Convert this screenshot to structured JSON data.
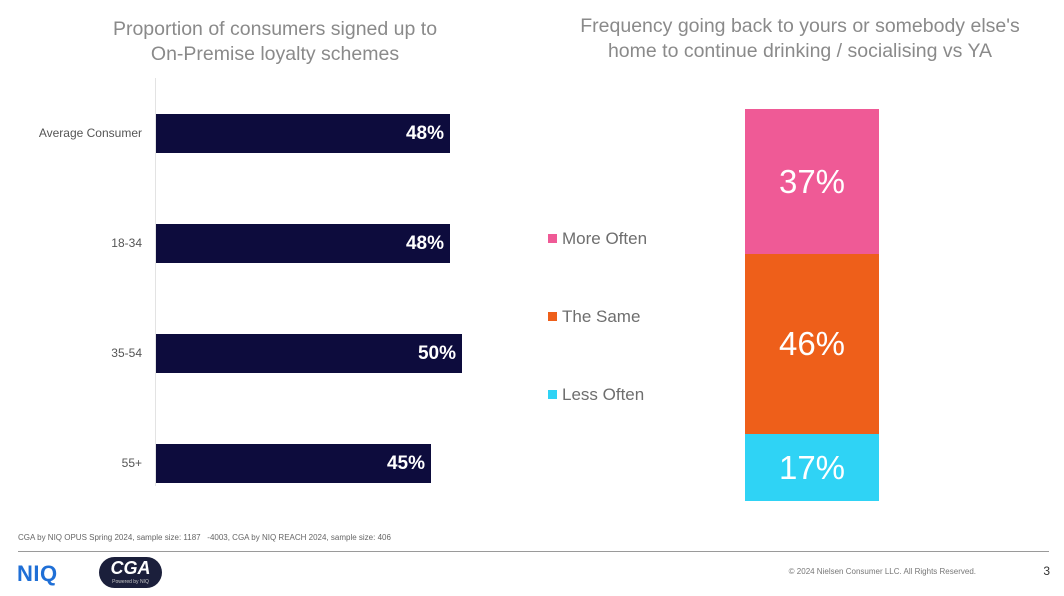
{
  "chart_data": [
    {
      "type": "bar",
      "orientation": "horizontal",
      "title": "Proportion of consumers signed up to On-Premise loyalty schemes",
      "categories": [
        "Average Consumer",
        "18-34",
        "35-54",
        "55+"
      ],
      "values": [
        48,
        48,
        50,
        45
      ],
      "value_labels": [
        "48%",
        "48%",
        "50%",
        "45%"
      ],
      "xlim": [
        0,
        100
      ],
      "bar_color": "#0d0c3d",
      "grid": false
    },
    {
      "type": "bar",
      "stacked": true,
      "title": "Frequency going back to yours or somebody else's home to continue drinking / socialising vs YA",
      "series": [
        {
          "name": "More Often",
          "value": 37,
          "label": "37%",
          "color": "#ef5a96"
        },
        {
          "name": "The Same",
          "value": 46,
          "label": "46%",
          "color": "#ee5f1a"
        },
        {
          "name": "Less Often",
          "value": 17,
          "label": "17%",
          "color": "#2fd3f5"
        }
      ],
      "legend_position": "left"
    }
  ],
  "left_title_lines": [
    "Proportion of consumers signed up to",
    "On-Premise loyalty schemes"
  ],
  "right_title_lines": [
    "Frequency going back to yours or somebody else's",
    "home to continue drinking / socialising vs YA"
  ],
  "footer": {
    "source_note": "CGA by NIQ OPUS Spring 2024, sample size: 1187   -4003, CGA by NIQ REACH 2024, sample size: 406",
    "niq_logo": "NIQ",
    "cga_logo": "CGA",
    "cga_tagline": "Powered by NIQ",
    "copyright": "© 2024 Nielsen Consumer LLC. All Rights Reserved.",
    "page_number": "3"
  }
}
